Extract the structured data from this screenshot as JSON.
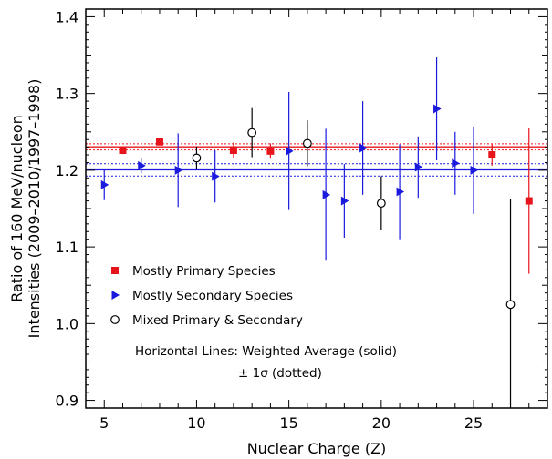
{
  "chart_data": {
    "type": "scatter",
    "xlabel": "Nuclear Charge (Z)",
    "ylabel_line1": "Ratio of 160 MeV/nucleon",
    "ylabel_line2": "Intensities (2009–2010/1997–1998)",
    "xlim": [
      4,
      29
    ],
    "ylim": [
      0.89,
      1.41
    ],
    "xticks": [
      5,
      10,
      15,
      20,
      25
    ],
    "xtick_labels": [
      "5",
      "10",
      "15",
      "20",
      "25"
    ],
    "yticks": [
      0.9,
      1.0,
      1.1,
      1.2,
      1.3,
      1.4
    ],
    "ytick_labels": [
      "0.9",
      "1.0",
      "1.1",
      "1.2",
      "1.3",
      "1.4"
    ],
    "series": [
      {
        "name": "Mostly Primary Species",
        "color": "#e8141b",
        "marker": "square",
        "points": [
          {
            "x": 6,
            "y": 1.226,
            "lo": 1.221,
            "hi": 1.231
          },
          {
            "x": 8,
            "y": 1.237,
            "lo": 1.233,
            "hi": 1.241
          },
          {
            "x": 12,
            "y": 1.226,
            "lo": 1.216,
            "hi": 1.236
          },
          {
            "x": 14,
            "y": 1.225,
            "lo": 1.215,
            "hi": 1.235
          },
          {
            "x": 26,
            "y": 1.22,
            "lo": 1.206,
            "hi": 1.234
          },
          {
            "x": 28,
            "y": 1.16,
            "lo": 1.065,
            "hi": 1.255
          }
        ]
      },
      {
        "name": "Mostly Secondary Species",
        "color": "#1a1adf",
        "marker": "triangle-right",
        "points": [
          {
            "x": 5,
            "y": 1.181,
            "lo": 1.161,
            "hi": 1.201
          },
          {
            "x": 7,
            "y": 1.206,
            "lo": 1.196,
            "hi": 1.216
          },
          {
            "x": 9,
            "y": 1.2,
            "lo": 1.152,
            "hi": 1.248
          },
          {
            "x": 11,
            "y": 1.192,
            "lo": 1.158,
            "hi": 1.226
          },
          {
            "x": 15,
            "y": 1.225,
            "lo": 1.148,
            "hi": 1.302
          },
          {
            "x": 17,
            "y": 1.168,
            "lo": 1.082,
            "hi": 1.254
          },
          {
            "x": 18,
            "y": 1.16,
            "lo": 1.112,
            "hi": 1.208
          },
          {
            "x": 19,
            "y": 1.229,
            "lo": 1.168,
            "hi": 1.29
          },
          {
            "x": 21,
            "y": 1.172,
            "lo": 1.11,
            "hi": 1.234
          },
          {
            "x": 22,
            "y": 1.204,
            "lo": 1.164,
            "hi": 1.244
          },
          {
            "x": 23,
            "y": 1.28,
            "lo": 1.213,
            "hi": 1.347
          },
          {
            "x": 24,
            "y": 1.209,
            "lo": 1.168,
            "hi": 1.25
          },
          {
            "x": 25,
            "y": 1.2,
            "lo": 1.143,
            "hi": 1.257
          }
        ]
      },
      {
        "name": "Mixed Primary & Secondary",
        "color": "#000000",
        "marker": "circle-open",
        "points": [
          {
            "x": 10,
            "y": 1.216,
            "lo": 1.201,
            "hi": 1.231
          },
          {
            "x": 13,
            "y": 1.249,
            "lo": 1.217,
            "hi": 1.281
          },
          {
            "x": 16,
            "y": 1.235,
            "lo": 1.205,
            "hi": 1.265
          },
          {
            "x": 20,
            "y": 1.157,
            "lo": 1.122,
            "hi": 1.192
          },
          {
            "x": 27,
            "y": 1.025,
            "lo": 0.89,
            "hi": 1.163
          }
        ]
      }
    ],
    "reference_lines": [
      {
        "color": "#e8141b",
        "avg": 1.2305,
        "lower": 1.2265,
        "upper": 1.2345
      },
      {
        "color": "#1a1adf",
        "avg": 1.2005,
        "lower": 1.1925,
        "upper": 1.2085
      }
    ],
    "annotation_line1": "Horizontal Lines: Weighted Average (solid)",
    "annotation_line2": "± 1σ (dotted)",
    "legend_position": "lower-left"
  }
}
